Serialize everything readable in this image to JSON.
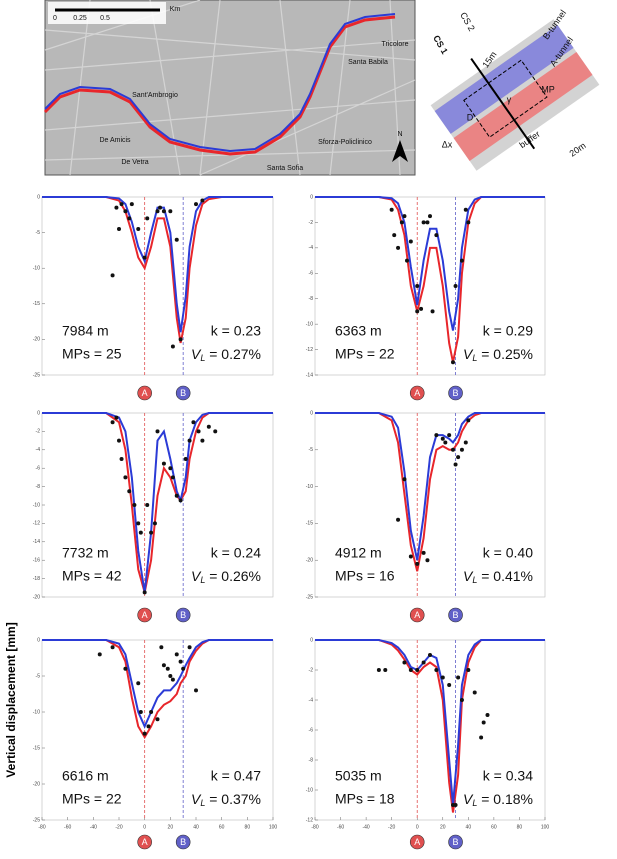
{
  "chart_data": [
    {
      "type": "line",
      "xlim": [
        -80,
        100
      ],
      "ylim": [
        -25,
        0
      ],
      "yticks": [
        0,
        -5,
        -10,
        -15,
        -20,
        -25
      ],
      "x": [
        -80,
        -30,
        -20,
        -15,
        -10,
        -5,
        0,
        5,
        10,
        15,
        20,
        25,
        28,
        32,
        35,
        40,
        45,
        50,
        60,
        100
      ],
      "series": [
        {
          "color": "#e8262b",
          "values": [
            0,
            0,
            -0.5,
            -2,
            -5,
            -8.5,
            -10,
            -7,
            -3,
            -3,
            -7,
            -17,
            -20.5,
            -17,
            -10,
            -4,
            -1,
            -0.3,
            0,
            0
          ]
        },
        {
          "color": "#2b3bd6",
          "values": [
            0,
            0,
            -0.2,
            -1,
            -3.5,
            -7,
            -9,
            -5,
            -1.5,
            -1.5,
            -5,
            -15,
            -19,
            -14,
            -7,
            -2,
            -0.5,
            0,
            0,
            0
          ]
        }
      ],
      "points": {
        "color": "#111111",
        "x": [
          -22,
          -18,
          -15,
          -12,
          -10,
          -20,
          -25,
          -5,
          0,
          2,
          10,
          12,
          15,
          20,
          25,
          28,
          40,
          45,
          22
        ],
        "y": [
          -1.5,
          -1,
          -2,
          -3,
          -1,
          -4.5,
          -11,
          -4.5,
          -8.5,
          -3,
          -2,
          -1.5,
          -2,
          -2,
          -6,
          -20,
          -1,
          -0.5,
          -21
        ]
      },
      "markers": [
        {
          "label": "A",
          "x": 0,
          "color": "#e05050"
        },
        {
          "label": "B",
          "x": 30,
          "color": "#6060c8"
        }
      ],
      "annotations": [
        "7984 m",
        "MPs = 25",
        "k = 0.23",
        " = 0.27%"
      ],
      "vl_symbol": "V",
      "vl_subscript": "L"
    },
    {
      "type": "line",
      "xlim": [
        -80,
        100
      ],
      "ylim": [
        -14,
        0
      ],
      "yticks": [
        0,
        -2,
        -4,
        -6,
        -8,
        -10,
        -12,
        -14
      ],
      "x": [
        -80,
        -30,
        -20,
        -15,
        -10,
        -5,
        0,
        5,
        10,
        15,
        20,
        25,
        28,
        32,
        35,
        40,
        45,
        50,
        60,
        100
      ],
      "series": [
        {
          "color": "#e8262b",
          "values": [
            0,
            0,
            -0.2,
            -1,
            -3,
            -7,
            -9,
            -7,
            -4,
            -4,
            -7,
            -11.5,
            -13,
            -11,
            -6,
            -2,
            -0.5,
            0,
            0,
            0
          ]
        },
        {
          "color": "#2b3bd6",
          "values": [
            0,
            0,
            -0.1,
            -0.5,
            -2,
            -5.5,
            -8.5,
            -5,
            -2.5,
            -2.5,
            -5,
            -9,
            -10.5,
            -8,
            -4,
            -1,
            -0.2,
            0,
            0,
            0
          ]
        }
      ],
      "points": {
        "color": "#111111",
        "x": [
          -20,
          -18,
          -15,
          -12,
          -10,
          -8,
          -5,
          0,
          0,
          3,
          5,
          8,
          10,
          12,
          15,
          28,
          30,
          35,
          38,
          40
        ],
        "y": [
          -1,
          -3,
          -4,
          -2,
          -1.5,
          -5,
          -3.5,
          -7,
          -9,
          -8.8,
          -2,
          -2,
          -1.5,
          -9,
          -3,
          -13,
          -7,
          -5,
          -1,
          -2
        ]
      },
      "markers": [
        {
          "label": "A",
          "x": 0,
          "color": "#e05050"
        },
        {
          "label": "B",
          "x": 30,
          "color": "#6060c8"
        }
      ],
      "annotations": [
        "6363 m",
        "MPs = 22",
        "k = 0.29",
        " = 0.25%"
      ],
      "vl_symbol": "V",
      "vl_subscript": "L"
    },
    {
      "type": "line",
      "xlim": [
        -80,
        100
      ],
      "ylim": [
        -20,
        0
      ],
      "yticks": [
        0,
        -2,
        -4,
        -6,
        -8,
        -10,
        -12,
        -14,
        -16,
        -18,
        -20
      ],
      "x": [
        -80,
        -30,
        -20,
        -15,
        -10,
        -5,
        0,
        5,
        10,
        15,
        20,
        25,
        28,
        32,
        35,
        40,
        45,
        50,
        60,
        100
      ],
      "series": [
        {
          "color": "#e8262b",
          "values": [
            0,
            0,
            -1,
            -4,
            -10,
            -17,
            -19.5,
            -16,
            -9,
            -6,
            -7,
            -9,
            -9.5,
            -8.5,
            -5,
            -2,
            -0.5,
            0,
            0,
            0
          ]
        },
        {
          "color": "#2b3bd6",
          "values": [
            0,
            0,
            -0.5,
            -2,
            -7,
            -15,
            -19.5,
            -13,
            -3,
            -2,
            -5,
            -8.5,
            -9.5,
            -7,
            -3,
            -1,
            -0.2,
            0,
            0,
            0
          ]
        }
      ],
      "points": {
        "color": "#111111",
        "x": [
          -25,
          -22,
          -20,
          -18,
          -15,
          -12,
          -8,
          -5,
          0,
          -3,
          2,
          5,
          8,
          10,
          15,
          20,
          22,
          25,
          28,
          32,
          35,
          38,
          42,
          45,
          55,
          50
        ],
        "y": [
          -1,
          -0.5,
          -3,
          -5,
          -7,
          -8.5,
          -10,
          -12,
          -19.5,
          -13,
          -10,
          -13,
          -12,
          -2,
          -5.5,
          -6,
          -7,
          -9,
          -9.5,
          -5,
          -3,
          -1,
          -2,
          -3,
          -2,
          -1.5
        ]
      },
      "markers": [
        {
          "label": "A",
          "x": 0,
          "color": "#e05050"
        },
        {
          "label": "B",
          "x": 30,
          "color": "#6060c8"
        }
      ],
      "annotations": [
        "7732 m",
        "MPs = 42",
        "k = 0.24",
        " = 0.26%"
      ],
      "vl_symbol": "V",
      "vl_subscript": "L"
    },
    {
      "type": "line",
      "xlim": [
        -80,
        100
      ],
      "ylim": [
        -25,
        0
      ],
      "yticks": [
        0,
        -5,
        -10,
        -15,
        -20,
        -25
      ],
      "x": [
        -80,
        -30,
        -20,
        -15,
        -10,
        -5,
        0,
        5,
        10,
        15,
        20,
        25,
        28,
        32,
        35,
        40,
        45,
        50,
        60,
        100
      ],
      "series": [
        {
          "color": "#e8262b",
          "values": [
            0,
            0,
            -1,
            -4,
            -11,
            -18,
            -21.5,
            -17,
            -9,
            -5,
            -4.5,
            -5,
            -5,
            -4,
            -2.5,
            -1,
            -0.3,
            0,
            0,
            0
          ]
        },
        {
          "color": "#2b3bd6",
          "values": [
            0,
            0,
            -0.5,
            -2,
            -8,
            -16,
            -20,
            -14,
            -6,
            -3,
            -3,
            -3.5,
            -4,
            -3,
            -1.5,
            -0.5,
            0,
            0,
            0,
            0
          ]
        }
      ],
      "points": {
        "color": "#111111",
        "x": [
          -15,
          -10,
          -5,
          0,
          5,
          8,
          15,
          20,
          22,
          25,
          28,
          30,
          32,
          35,
          38,
          40
        ],
        "y": [
          -14.5,
          -9,
          -19.5,
          -20.5,
          -19,
          -20,
          -3,
          -3.5,
          -4,
          -3,
          -5,
          -7,
          -6,
          -5,
          -4,
          -1
        ]
      },
      "markers": [
        {
          "label": "A",
          "x": 0,
          "color": "#e05050"
        },
        {
          "label": "B",
          "x": 30,
          "color": "#6060c8"
        }
      ],
      "annotations": [
        "4912 m",
        "MPs = 16",
        "k = 0.40",
        " = 0.41%"
      ],
      "vl_symbol": "V",
      "vl_subscript": "L"
    },
    {
      "type": "line",
      "xlim": [
        -80,
        100
      ],
      "ylim": [
        -25,
        0
      ],
      "yticks": [
        0,
        -5,
        -10,
        -15,
        -20,
        -25
      ],
      "xticks": [
        -80,
        -60,
        -40,
        -20,
        0,
        20,
        40,
        60,
        80,
        100
      ],
      "x": [
        -80,
        -30,
        -20,
        -15,
        -10,
        -5,
        0,
        5,
        10,
        15,
        20,
        25,
        28,
        32,
        35,
        40,
        45,
        50,
        60,
        100
      ],
      "series": [
        {
          "color": "#e8262b",
          "values": [
            0,
            0,
            -1,
            -3,
            -8,
            -12,
            -13.5,
            -12,
            -10,
            -9,
            -8.5,
            -7.5,
            -6,
            -5,
            -3,
            -1.5,
            -0.5,
            0,
            0,
            0
          ]
        },
        {
          "color": "#2b3bd6",
          "values": [
            0,
            0,
            -0.5,
            -2,
            -6,
            -10,
            -12,
            -10,
            -8,
            -7,
            -7,
            -6,
            -5,
            -3.5,
            -2.5,
            -1,
            -0.3,
            0,
            0,
            0
          ]
        }
      ],
      "points": {
        "color": "#111111",
        "x": [
          -35,
          -25,
          -15,
          -5,
          -3,
          0,
          3,
          5,
          10,
          13,
          15,
          18,
          20,
          25,
          28,
          30,
          22,
          35,
          40
        ],
        "y": [
          -2,
          -1,
          -4,
          -6,
          -10,
          -13,
          -12,
          -10,
          -11,
          -1,
          -3.5,
          -4,
          -5,
          -2,
          -3,
          -4,
          -5.5,
          -1,
          -7
        ]
      },
      "markers": [
        {
          "label": "A",
          "x": 0,
          "color": "#e05050"
        },
        {
          "label": "B",
          "x": 30,
          "color": "#6060c8"
        }
      ],
      "annotations": [
        "6616 m",
        "MPs = 22",
        "k = 0.47",
        " = 0.37%"
      ],
      "vl_symbol": "V",
      "vl_subscript": "L"
    },
    {
      "type": "line",
      "xlim": [
        -80,
        100
      ],
      "ylim": [
        -12,
        0
      ],
      "yticks": [
        0,
        -2,
        -4,
        -6,
        -8,
        -10,
        -12
      ],
      "xticks": [
        -80,
        -60,
        -40,
        -20,
        0,
        20,
        40,
        60,
        80,
        100
      ],
      "x": [
        -80,
        -30,
        -20,
        -15,
        -10,
        -5,
        0,
        5,
        10,
        15,
        20,
        25,
        28,
        32,
        35,
        40,
        45,
        50,
        60,
        100
      ],
      "series": [
        {
          "color": "#e8262b",
          "values": [
            0,
            0,
            -0.3,
            -0.7,
            -1.3,
            -2,
            -2.3,
            -1.8,
            -1.5,
            -1.8,
            -4,
            -9.5,
            -11.5,
            -9,
            -4,
            -1.5,
            -0.5,
            0,
            0,
            0
          ]
        },
        {
          "color": "#2b3bd6",
          "values": [
            0,
            0,
            -0.2,
            -0.5,
            -1,
            -1.8,
            -2,
            -1.5,
            -1,
            -1.2,
            -3,
            -8,
            -11,
            -7,
            -3,
            -1,
            -0.3,
            0,
            0,
            0
          ]
        }
      ],
      "points": {
        "color": "#111111",
        "x": [
          -30,
          -25,
          -10,
          -5,
          0,
          5,
          10,
          15,
          20,
          25,
          28,
          30,
          32,
          35,
          40,
          45,
          50,
          52,
          55
        ],
        "y": [
          -2,
          -2,
          -1.5,
          -2,
          -2,
          -1.5,
          -1,
          -2,
          -2.5,
          -3,
          -11,
          -11,
          -2.5,
          -4,
          -2,
          -3.5,
          -6.5,
          -5.5,
          -5
        ]
      },
      "markers": [
        {
          "label": "A",
          "x": 0,
          "color": "#e05050"
        },
        {
          "label": "B",
          "x": 30,
          "color": "#6060c8"
        }
      ],
      "annotations": [
        "5035 m",
        "MPs = 18",
        "k = 0.34",
        " = 0.18%"
      ],
      "vl_symbol": "V",
      "vl_subscript": "L"
    }
  ],
  "y_axis_label": "Vertical displacement [mm]",
  "map": {
    "scale": [
      "0",
      "0.25",
      "0.5",
      "Km"
    ],
    "labels": [
      "Sant'Ambrogio",
      "De Amicis",
      "De Vetra",
      "Santa Sofia",
      "Sforza-Policlinico",
      "Santa Babila",
      "Tricolore"
    ],
    "north": "N"
  },
  "diagram": {
    "labels": [
      "B-tunnel",
      "A-tunnel",
      "CS 1",
      "CS 2",
      "15m",
      "MP",
      "D",
      "Δx",
      "buffer",
      "20m",
      "γ"
    ]
  }
}
